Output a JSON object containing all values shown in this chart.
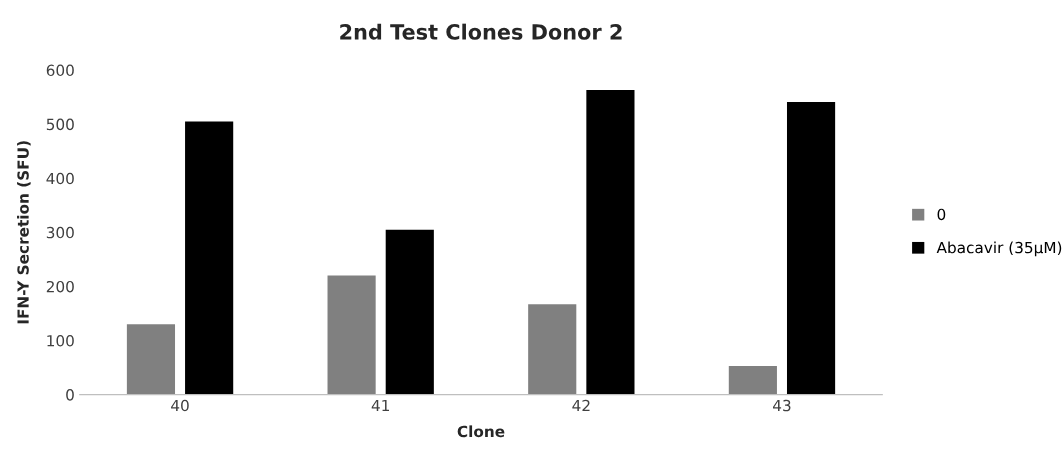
{
  "chart_data": {
    "type": "bar",
    "title": "2nd Test Clones Donor 2",
    "xlabel": "Clone",
    "ylabel": "IFN-Y Secretion (SFU)",
    "categories": [
      "40",
      "41",
      "42",
      "43"
    ],
    "series": [
      {
        "name": "0",
        "color": "#808080",
        "values": [
          130,
          220,
          167,
          53
        ]
      },
      {
        "name": "Abacavir (35µM)",
        "color": "#000000",
        "values": [
          505,
          305,
          563,
          541
        ]
      }
    ],
    "ylim": [
      0,
      600
    ],
    "yticks": [
      0,
      100,
      200,
      300,
      400,
      500,
      600
    ],
    "grid": false,
    "legend": "right"
  }
}
